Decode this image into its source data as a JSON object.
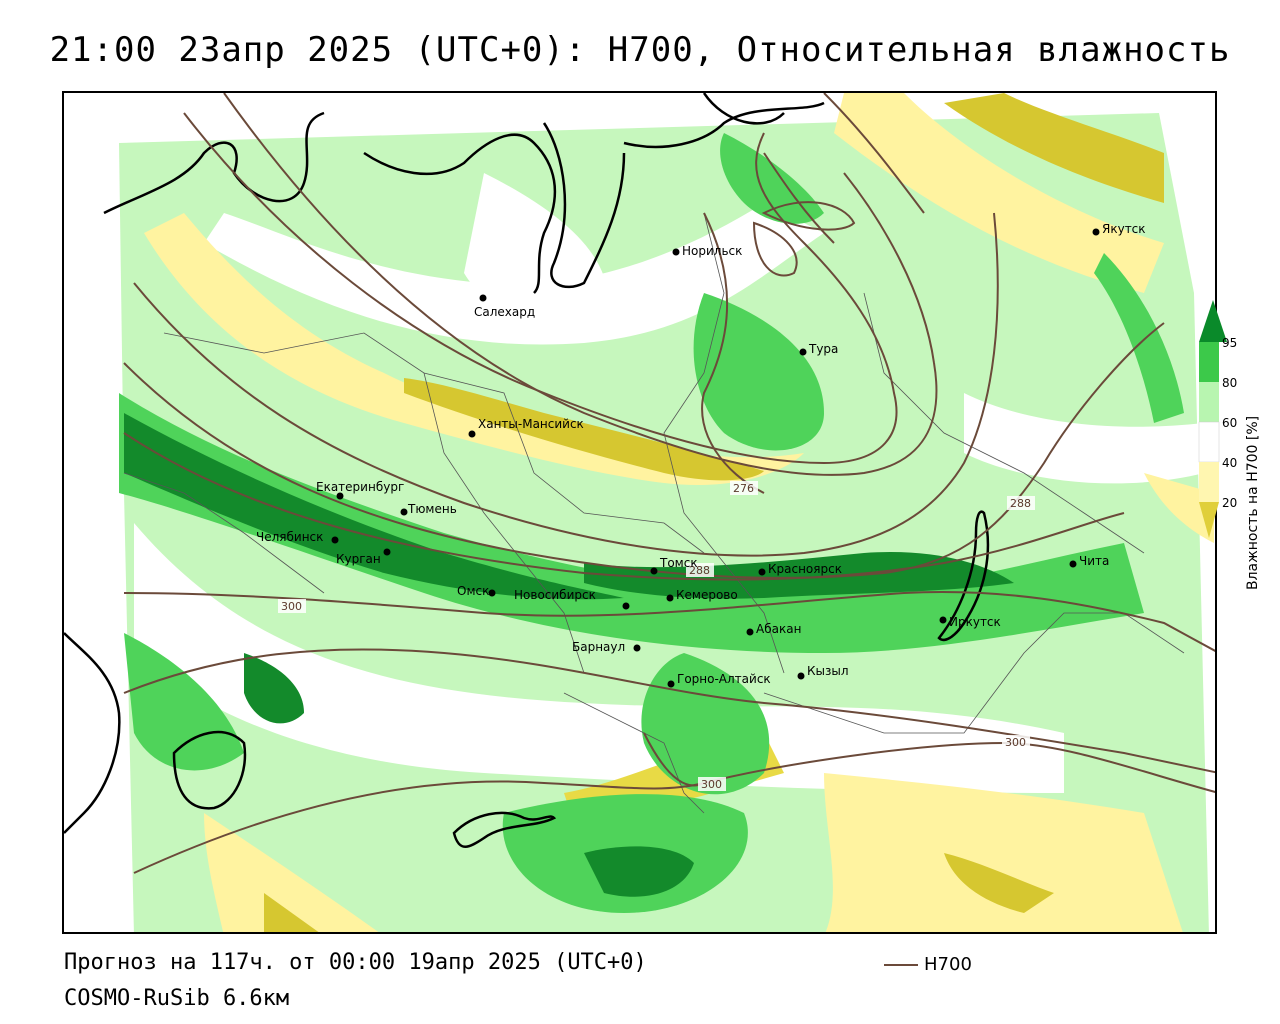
{
  "title": "21:00 23апр 2025 (UTC+0): H700, Относительная влажность",
  "footer": {
    "forecast": "Прогноз на 117ч. от 00:00 19апр 2025 (UTC+0)",
    "model": "COSMO-RuSib 6.6км"
  },
  "series_legend": {
    "name": "H700",
    "color": "#6b4a3a"
  },
  "colorbar": {
    "title": "Влажность на H700 [%]",
    "ticks": [
      "95",
      "80",
      "60",
      "40",
      "20"
    ],
    "colors": {
      "dark_green": "#0a8a2a",
      "green": "#3cc94a",
      "light_green": "#b8f5b0",
      "white": "#ffffff",
      "light_yellow": "#fff6b0",
      "yellow": "#e0cf3a"
    }
  },
  "cities": [
    {
      "name": "Норильск"
    },
    {
      "name": "Якутск"
    },
    {
      "name": "Салехард"
    },
    {
      "name": "Тура"
    },
    {
      "name": "Ханты-Мансийск"
    },
    {
      "name": "Екатеринбург"
    },
    {
      "name": "Тюмень"
    },
    {
      "name": "Челябинск"
    },
    {
      "name": "Курган"
    },
    {
      "name": "Омск"
    },
    {
      "name": "Новосибирск"
    },
    {
      "name": "Томск"
    },
    {
      "name": "Кемерово"
    },
    {
      "name": "Красноярск"
    },
    {
      "name": "Чита"
    },
    {
      "name": "Иркутск"
    },
    {
      "name": "Абакан"
    },
    {
      "name": "Барнаул"
    },
    {
      "name": "Горно-Алтайск"
    },
    {
      "name": "Кызыл"
    }
  ],
  "contour_labels": [
    "276",
    "288",
    "288",
    "300",
    "300",
    "300"
  ]
}
